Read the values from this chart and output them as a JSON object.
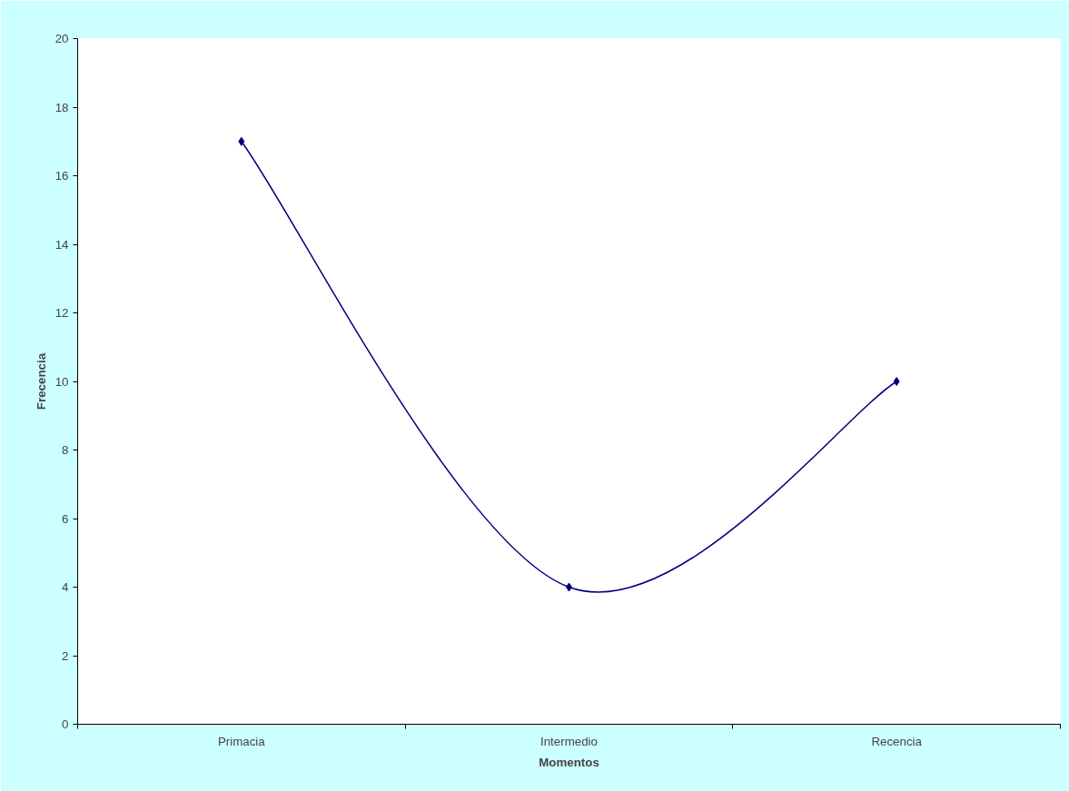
{
  "chart_data": {
    "type": "line",
    "xlabel": "Momentos",
    "ylabel": "Frecencia",
    "categories": [
      "Primacia",
      "Intermedio",
      "Recencia"
    ],
    "series": [
      {
        "color": "#000080",
        "values": [
          17,
          4,
          10
        ]
      }
    ],
    "ylim": [
      0,
      20
    ],
    "yticks": [
      0,
      2,
      4,
      6,
      8,
      10,
      12,
      14,
      16,
      18,
      20
    ],
    "marker": "diamond",
    "line_style": "solid",
    "grid": false
  }
}
